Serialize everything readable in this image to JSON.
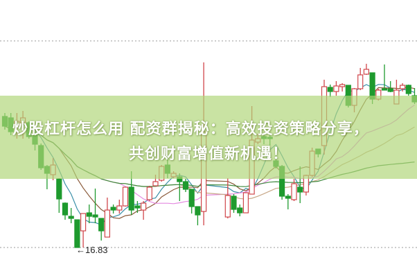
{
  "chart_data": {
    "type": "candlestick",
    "title": "炒股杠杆怎么用 配资群揭秘：高效投资策略分享，共创财富增值新机遇！",
    "title_lines": [
      "炒股杠杆怎么用 配资群揭秘：高效投资策略分享，",
      "共创财富增值新机遇！"
    ],
    "low_annotation": "←16.83",
    "low_value": 16.83,
    "ylim": [
      16.83,
      22.2
    ],
    "grid": "dotted horizontal at top and bottom",
    "candle_fields": [
      "open",
      "high",
      "low",
      "close"
    ],
    "candles": [
      [
        20.61,
        20.71,
        20.23,
        20.33
      ],
      [
        20.57,
        20.71,
        20.07,
        20.17
      ],
      [
        20.33,
        20.71,
        19.97,
        20.47
      ],
      [
        20.41,
        20.77,
        19.97,
        20.57
      ],
      [
        20.43,
        20.47,
        19.97,
        20.03
      ],
      [
        20.11,
        20.17,
        19.63,
        19.81
      ],
      [
        19.77,
        19.83,
        19.07,
        19.13
      ],
      [
        19.17,
        19.21,
        18.51,
        18.97
      ],
      [
        18.93,
        19.41,
        18.77,
        19.21
      ],
      [
        18.81,
        18.83,
        17.83,
        18.23
      ],
      [
        18.11,
        18.13,
        17.63,
        17.77
      ],
      [
        17.73,
        17.97,
        17.53,
        17.67
      ],
      [
        17.63,
        17.63,
        16.83,
        16.83
      ],
      [
        17.31,
        17.81,
        16.83,
        17.81
      ],
      [
        17.83,
        18.07,
        17.53,
        17.73
      ],
      [
        17.77,
        18.53,
        17.53,
        17.71
      ],
      [
        17.67,
        17.67,
        17.03,
        17.31
      ],
      [
        17.13,
        18.27,
        17.13,
        17.91
      ],
      [
        17.99,
        18.07,
        17.81,
        17.91
      ],
      [
        17.91,
        18.21,
        17.81,
        18.03
      ],
      [
        18.03,
        18.57,
        18.01,
        18.57
      ],
      [
        18.57,
        19.03,
        17.77,
        17.91
      ],
      [
        18.03,
        18.17,
        17.83,
        17.97
      ],
      [
        17.91,
        18.17,
        17.63,
        18.11
      ],
      [
        18.21,
        18.61,
        18.17,
        18.57
      ],
      [
        18.61,
        18.93,
        18.61,
        18.73
      ],
      [
        18.77,
        19.21,
        18.73,
        19.17
      ],
      [
        19.21,
        19.43,
        18.83,
        18.97
      ],
      [
        18.87,
        19.03,
        18.83,
        18.97
      ],
      [
        18.87,
        18.97,
        18.17,
        18.73
      ],
      [
        18.73,
        18.81,
        18.43,
        18.51
      ],
      [
        18.51,
        18.51,
        17.81,
        18.01
      ],
      [
        18.01,
        18.01,
        17.47,
        17.77
      ],
      [
        17.87,
        22.17,
        17.47,
        20.17
      ],
      [
        17.71,
        18.83,
        17.67,
        18.33
      ],
      [
        18.31,
        18.37,
        17.83,
        17.93
      ],
      [
        17.97,
        18.07,
        17.73,
        17.83
      ],
      [
        17.83,
        18.41,
        17.83,
        18.41
      ],
      [
        18.37,
        20.91,
        18.37,
        19.93
      ],
      [
        19.87,
        20.11,
        19.81,
        19.97
      ],
      [
        20.03,
        20.13,
        19.81,
        19.97
      ],
      [
        20.01,
        20.11,
        19.77,
        19.97
      ],
      [
        19.33,
        19.61,
        19.11,
        19.17
      ],
      [
        19.17,
        19.21,
        18.21,
        18.31
      ],
      [
        18.31,
        18.37,
        17.93,
        18.25
      ],
      [
        18.21,
        18.81,
        18.17,
        18.67
      ],
      [
        18.57,
        19.17,
        18.11,
        18.43
      ],
      [
        18.43,
        18.93,
        18.33,
        18.91
      ],
      [
        18.91,
        19.71,
        18.87,
        19.61
      ],
      [
        19.67,
        19.67,
        19.43,
        19.53
      ],
      [
        19.77,
        21.67,
        19.51,
        21.47
      ],
      [
        21.45,
        21.53,
        21.17,
        21.33
      ],
      [
        21.33,
        21.63,
        21.21,
        21.49
      ],
      [
        21.47,
        21.57,
        21.33,
        21.53
      ],
      [
        21.51,
        21.51,
        20.87,
        20.93
      ],
      [
        20.93,
        21.43,
        20.73,
        21.41
      ],
      [
        21.41,
        22.01,
        21.37,
        21.81
      ],
      [
        21.83,
        22.13,
        21.81,
        21.97
      ],
      [
        21.87,
        21.87,
        20.97,
        21.11
      ],
      [
        21.11,
        21.41,
        21.07,
        21.37
      ],
      [
        21.41,
        22.11,
        21.37,
        21.37
      ],
      [
        21.41,
        21.63,
        21.31,
        21.33
      ],
      [
        20.97,
        21.67,
        20.97,
        21.37
      ],
      [
        21.41,
        21.57,
        21.33,
        21.51
      ],
      [
        21.51,
        21.53,
        21.21,
        21.27
      ],
      [
        21.21,
        21.43,
        20.97,
        21.03
      ]
    ],
    "moving_averages": [
      {
        "period": 5,
        "color": "#3a8fa8"
      },
      {
        "period": 10,
        "color": "#8a5a3a"
      },
      {
        "period": 20,
        "color": "#e48ae0"
      },
      {
        "period": 30,
        "color": "#c8a888"
      },
      {
        "period": 60,
        "color": "#3f8a3f"
      }
    ],
    "colors": {
      "up": "#d0454a",
      "down": "#1e9a2e",
      "banner": "#b0d678",
      "grid": "#999999"
    }
  }
}
